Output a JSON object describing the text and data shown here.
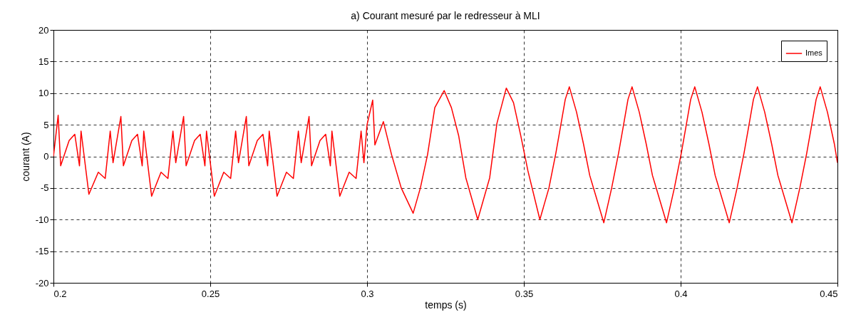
{
  "chart_data": {
    "type": "line",
    "title": "a) Courant mesuré par le redresseur à MLI",
    "xlabel": "temps (s)",
    "ylabel": "courant (A)",
    "xlim": [
      0.2,
      0.45
    ],
    "xticks": [
      0.2,
      0.25,
      0.3,
      0.35,
      0.4,
      0.45
    ],
    "ylim": [
      -20,
      20
    ],
    "yticks": [
      -20,
      -15,
      -10,
      -5,
      0,
      5,
      10,
      15,
      20
    ],
    "grid": true,
    "legend": "top right",
    "line_style": "solid",
    "marker": "none",
    "series": [
      {
        "name": "Imes",
        "color": "#ff0000",
        "x": [
          0.2,
          0.2015,
          0.2023,
          0.205,
          0.2068,
          0.2083,
          0.2088,
          0.2113,
          0.2143,
          0.2165,
          0.2181,
          0.219,
          0.2215,
          0.2223,
          0.225,
          0.2268,
          0.2283,
          0.2288,
          0.2313,
          0.2343,
          0.2365,
          0.2381,
          0.239,
          0.2415,
          0.2423,
          0.245,
          0.2468,
          0.2483,
          0.2488,
          0.2513,
          0.2543,
          0.2565,
          0.2581,
          0.259,
          0.2615,
          0.2623,
          0.265,
          0.2668,
          0.2683,
          0.2688,
          0.2713,
          0.2743,
          0.2765,
          0.2781,
          0.279,
          0.2815,
          0.2823,
          0.285,
          0.2868,
          0.2883,
          0.2888,
          0.2913,
          0.2943,
          0.2965,
          0.2981,
          0.299,
          0.3,
          0.3018,
          0.3025,
          0.3052,
          0.3078,
          0.3109,
          0.3147,
          0.317,
          0.3193,
          0.3216,
          0.3246,
          0.3269,
          0.3292,
          0.3315,
          0.3353,
          0.3391,
          0.3414,
          0.3444,
          0.3467,
          0.349,
          0.3513,
          0.3551,
          0.358,
          0.3602,
          0.3618,
          0.3632,
          0.3645,
          0.3668,
          0.369,
          0.371,
          0.3755,
          0.378,
          0.3802,
          0.3818,
          0.3832,
          0.3845,
          0.3868,
          0.389,
          0.391,
          0.3955,
          0.398,
          0.4002,
          0.4018,
          0.4032,
          0.4045,
          0.4068,
          0.409,
          0.411,
          0.4155,
          0.418,
          0.4202,
          0.4218,
          0.4232,
          0.4245,
          0.4268,
          0.429,
          0.431,
          0.4355,
          0.438,
          0.4402,
          0.4418,
          0.4432,
          0.4445,
          0.4468,
          0.449,
          0.45
        ],
        "values": [
          0,
          6.5,
          -1.5,
          2.5,
          3.5,
          -1.5,
          4,
          -6,
          -2.5,
          -3.5,
          4,
          -1,
          6.3,
          -1.5,
          2.5,
          3.5,
          -1.5,
          4,
          -6.3,
          -2.5,
          -3.5,
          4,
          -1,
          6.3,
          -1.5,
          2.5,
          3.5,
          -1.5,
          4,
          -6.3,
          -2.5,
          -3.5,
          4,
          -1,
          6.3,
          -1.5,
          2.5,
          3.5,
          -1.5,
          4,
          -6.3,
          -2.5,
          -3.5,
          4,
          -1,
          6.3,
          -1.5,
          2.5,
          3.5,
          -1.5,
          4,
          -6.3,
          -2.5,
          -3.5,
          4,
          -1,
          5,
          8.9,
          1.8,
          5.5,
          0.3,
          -5,
          -9,
          -5,
          0.3,
          7.7,
          10.4,
          7.7,
          3.3,
          -3.4,
          -10,
          -3.4,
          5.2,
          10.8,
          8.5,
          3.3,
          -2.3,
          -10,
          -5,
          0.5,
          5,
          9,
          11,
          7,
          2,
          -3,
          -10.5,
          -5,
          0.5,
          5,
          9,
          11,
          7,
          2,
          -3,
          -10.5,
          -5,
          0.5,
          5,
          9,
          11,
          7,
          2,
          -3,
          -10.5,
          -5,
          0.5,
          5,
          9,
          11,
          7,
          2,
          -3,
          -10.5,
          -5,
          0.5,
          5,
          9,
          11,
          7,
          2,
          -1
        ]
      }
    ]
  }
}
